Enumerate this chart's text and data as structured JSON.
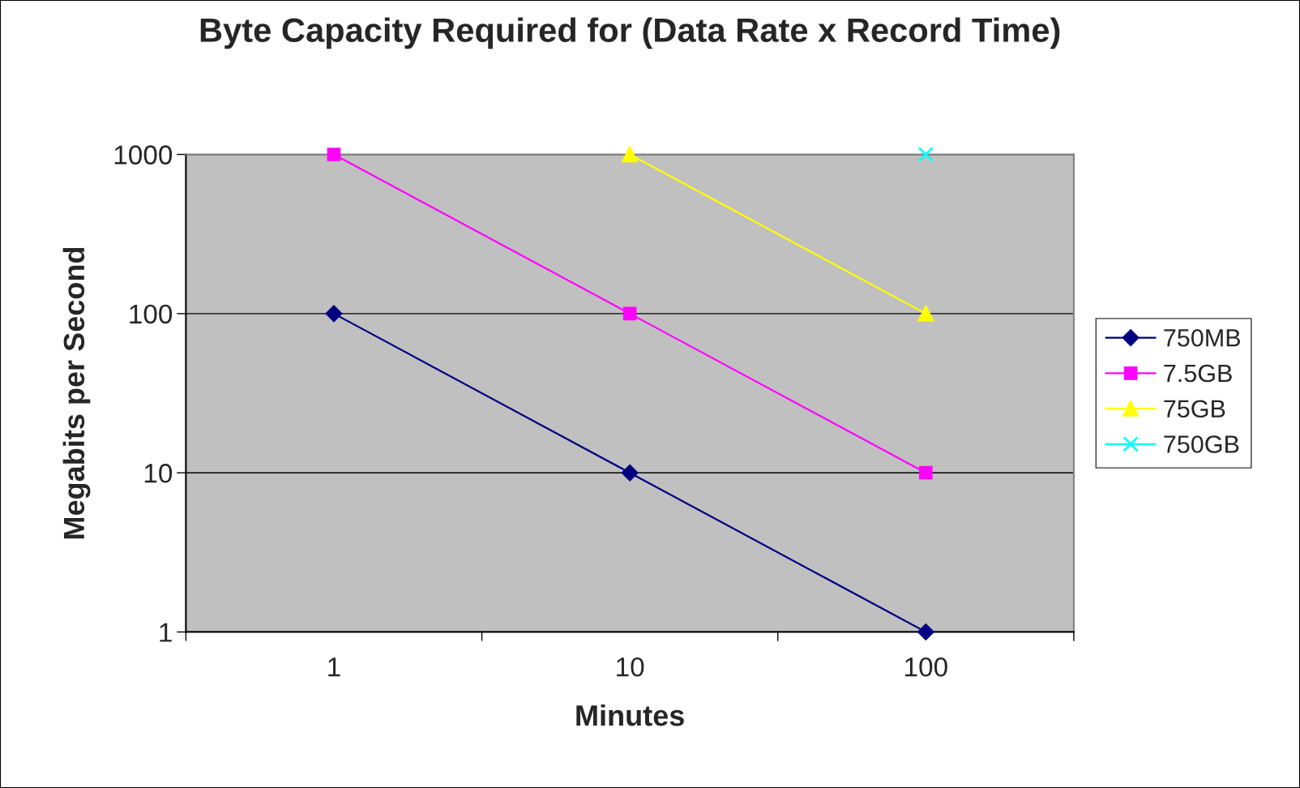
{
  "chart_data": {
    "type": "line",
    "title": "Byte Capacity Required for (Data Rate x Record Time)",
    "xlabel": "Minutes",
    "ylabel": "Megabits per Second",
    "categories": [
      "1",
      "10",
      "100"
    ],
    "series": [
      {
        "name": "750MB",
        "color": "#000080",
        "marker": "diamond",
        "values": [
          100,
          10,
          1
        ]
      },
      {
        "name": "7.5GB",
        "color": "#ff00ff",
        "marker": "square",
        "values": [
          1000,
          100,
          10
        ]
      },
      {
        "name": "75GB",
        "color": "#ffff00",
        "marker": "triangle",
        "values": [
          null,
          1000,
          100
        ]
      },
      {
        "name": "750GB",
        "color": "#00ffff",
        "marker": "cross",
        "values": [
          null,
          null,
          1000
        ]
      }
    ],
    "log": "y",
    "ylim": [
      1,
      1000
    ],
    "yticks": [
      1,
      10,
      100,
      1000
    ],
    "grid": "y",
    "legend": "right"
  }
}
